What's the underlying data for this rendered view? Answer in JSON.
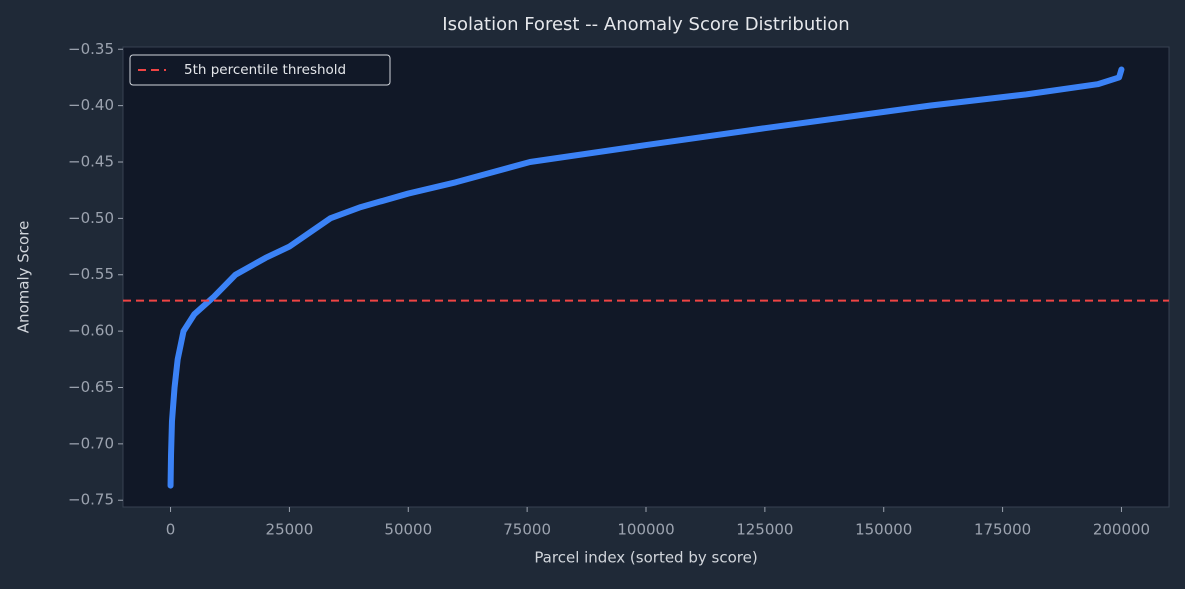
{
  "chart_data": {
    "type": "line",
    "title": "Isolation Forest -- Anomaly Score Distribution",
    "x_label": "Parcel index (sorted by score)",
    "y_label": "Anomaly Score",
    "x": [
      0,
      100,
      300,
      840,
      1500,
      2730,
      5000,
      9000,
      13650,
      20000,
      25000,
      33600,
      40000,
      50000,
      60000,
      75600,
      100000,
      125000,
      159700,
      180000,
      195000,
      199500,
      200000
    ],
    "series": [
      {
        "color": "#3b82f6",
        "values": [
          -0.737,
          -0.71,
          -0.68,
          -0.65,
          -0.625,
          -0.6,
          -0.585,
          -0.57,
          -0.55,
          -0.535,
          -0.525,
          -0.5,
          -0.49,
          -0.478,
          -0.468,
          -0.45,
          -0.435,
          -0.42,
          -0.4,
          -0.39,
          -0.381,
          -0.375,
          -0.368
        ]
      }
    ],
    "threshold": {
      "name": "5th percentile threshold",
      "value": -0.573,
      "color": "#ef4444"
    },
    "legend": "upper left",
    "xlim": [
      -10000,
      210000
    ],
    "ylim": [
      -0.756,
      -0.348
    ],
    "xticks": [
      0,
      25000,
      50000,
      75000,
      100000,
      125000,
      150000,
      175000,
      200000
    ],
    "yticks": [
      {
        "value": -0.75,
        "label": "−0.75"
      },
      {
        "value": -0.7,
        "label": "−0.70"
      },
      {
        "value": -0.65,
        "label": "−0.65"
      },
      {
        "value": -0.6,
        "label": "−0.60"
      },
      {
        "value": -0.55,
        "label": "−0.55"
      },
      {
        "value": -0.5,
        "label": "−0.50"
      },
      {
        "value": -0.45,
        "label": "−0.45"
      },
      {
        "value": -0.4,
        "label": "−0.40"
      },
      {
        "value": -0.35,
        "label": "−0.35"
      }
    ]
  }
}
